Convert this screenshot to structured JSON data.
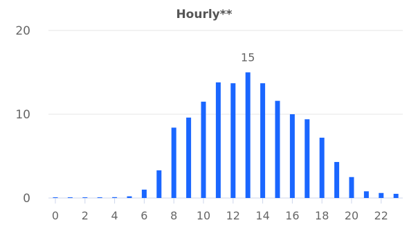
{
  "chart_data": {
    "type": "bar",
    "title": "Hourly**",
    "xlabel": "",
    "ylabel": "",
    "x": [
      0,
      1,
      2,
      3,
      4,
      5,
      6,
      7,
      8,
      9,
      10,
      11,
      12,
      13,
      14,
      15,
      16,
      17,
      18,
      19,
      20,
      21,
      22,
      23
    ],
    "values": [
      0.05,
      0.05,
      0.05,
      0.05,
      0.1,
      0.2,
      1.0,
      3.3,
      8.4,
      9.6,
      11.5,
      13.8,
      13.7,
      15.0,
      13.7,
      11.6,
      10.0,
      9.4,
      7.2,
      4.3,
      2.5,
      0.8,
      0.6,
      0.5
    ],
    "ylim": [
      0,
      20
    ],
    "yticks": [
      0,
      10,
      20
    ],
    "xticks": [
      0,
      2,
      4,
      6,
      8,
      10,
      12,
      14,
      16,
      18,
      20,
      22
    ],
    "data_labels": [
      {
        "x": 13,
        "text": "15"
      }
    ],
    "bar_color": "#1a66ff",
    "grid": true,
    "legend": "none"
  }
}
